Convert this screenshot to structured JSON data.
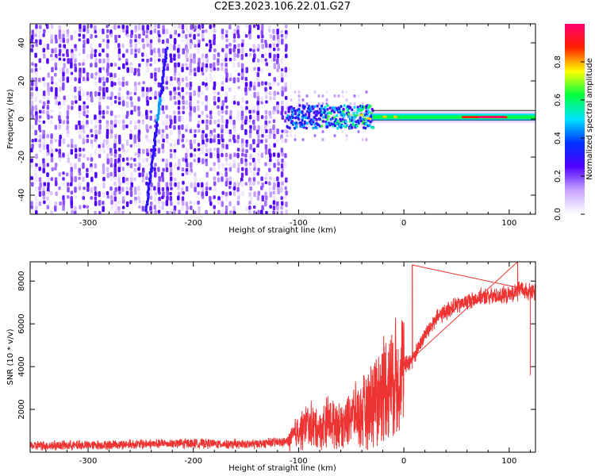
{
  "title": "C2E3.2023.106.22.01.G27",
  "chart_data": [
    {
      "type": "heatmap",
      "xlabel": "Height of straight line (km)",
      "ylabel": "Frequency (Hz)",
      "xlim": [
        -355,
        125
      ],
      "ylim": [
        -50,
        50
      ],
      "x_ticks": [
        "-300",
        "-200",
        "-100",
        "0",
        "100"
      ],
      "y_ticks": [
        "-40",
        "-20",
        "0",
        "20",
        "40"
      ],
      "features": {
        "noise_region_x": [
          -355,
          -112
        ],
        "drift_line": {
          "x": [
            -245,
            -225
          ],
          "y": [
            -48,
            38
          ]
        },
        "carrier_band": {
          "x": [
            -110,
            125
          ],
          "y_center": 1
        }
      },
      "colorbar": {
        "label": "Normalized spectral amplitude",
        "range": [
          0,
          1
        ],
        "ticks": [
          "0.0",
          "0.2",
          "0.4",
          "0.6",
          "0.8"
        ],
        "colormap": [
          "#ffffff",
          "#c9a6ff",
          "#5000ff",
          "#0033ff",
          "#00e5ff",
          "#00ff40",
          "#ffff00",
          "#ff2000",
          "#ff0070"
        ]
      }
    },
    {
      "type": "line",
      "xlabel": "Height of straight line (km)",
      "ylabel": "SNR (10 * v/v)",
      "xlim": [
        -355,
        125
      ],
      "ylim": [
        0,
        8900
      ],
      "x_ticks": [
        "-300",
        "-200",
        "-100",
        "0",
        "100"
      ],
      "y_ticks": [
        "2000",
        "4000",
        "6000",
        "8000"
      ],
      "series": [
        {
          "color": "#ee3333",
          "x": [
            -355,
            -300,
            -250,
            -200,
            -150,
            -110,
            -100,
            -90,
            -80,
            -70,
            -60,
            -50,
            -40,
            -30,
            -20,
            -10,
            0,
            10,
            20,
            30,
            40,
            50,
            60,
            70,
            80,
            90,
            100,
            110,
            120,
            125
          ],
          "y": [
            300,
            330,
            380,
            420,
            360,
            500,
            1000,
            1300,
            1100,
            1500,
            1300,
            1800,
            1700,
            2500,
            3000,
            3400,
            4000,
            4500,
            5500,
            6200,
            6600,
            6850,
            7050,
            7200,
            7300,
            7300,
            7350,
            7600,
            7500,
            7450
          ]
        }
      ],
      "annotations": {
        "peak_spikes": [
          {
            "x": 8,
            "y": 8750
          },
          {
            "x": 108,
            "y": 8900
          }
        ],
        "dropout": {
          "x": 120,
          "y": 3600
        }
      }
    }
  ]
}
